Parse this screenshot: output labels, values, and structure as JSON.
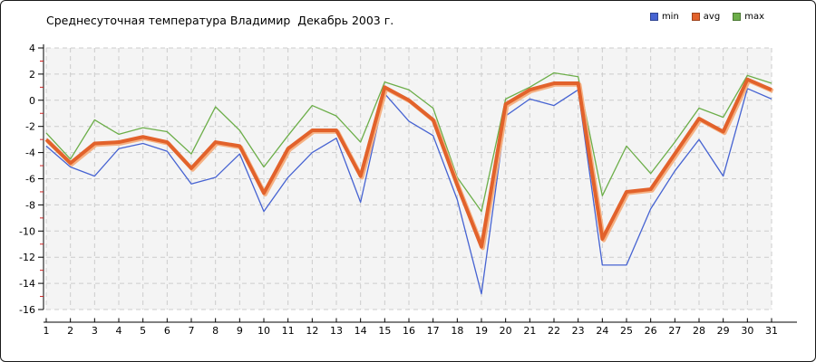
{
  "title": "Среднесуточная температура Владимир  Декабрь 2003 г.",
  "colors": {
    "plot_bg": "#f4f4f4",
    "grid": "#cccccc",
    "axis": "#000000",
    "minor_tick": "#cc2222",
    "frame_border": "#1a1a1a",
    "avg_halo": "#f5b183"
  },
  "chart_data": {
    "type": "line",
    "title": "Среднесуточная температура Владимир  Декабрь 2003 г.",
    "x": [
      1,
      2,
      3,
      4,
      5,
      6,
      7,
      8,
      9,
      10,
      11,
      12,
      13,
      14,
      15,
      16,
      17,
      18,
      19,
      20,
      21,
      22,
      23,
      24,
      25,
      26,
      27,
      28,
      29,
      30,
      31
    ],
    "series": [
      {
        "name": "min",
        "color": "#4663d2",
        "values": [
          -3.5,
          -5.1,
          -5.8,
          -3.7,
          -3.3,
          -3.9,
          -6.4,
          -5.9,
          -4.1,
          -8.5,
          -5.9,
          -4.0,
          -2.9,
          -7.8,
          0.5,
          -1.6,
          -2.7,
          -7.6,
          -14.8,
          -1.2,
          0.1,
          -0.4,
          0.8,
          -12.6,
          -12.6,
          -8.3,
          -5.4,
          -3.0,
          -5.8,
          0.9,
          0.1
        ]
      },
      {
        "name": "avg",
        "color": "#e2622b",
        "values": [
          -3.0,
          -4.8,
          -3.3,
          -3.2,
          -2.8,
          -3.2,
          -5.2,
          -3.2,
          -3.5,
          -7.1,
          -3.7,
          -2.3,
          -2.3,
          -5.8,
          1.0,
          0.0,
          -1.5,
          -6.5,
          -11.2,
          -0.3,
          0.8,
          1.3,
          1.3,
          -10.6,
          -7.0,
          -6.8,
          -4.1,
          -1.4,
          -2.4,
          1.6,
          0.8
        ]
      },
      {
        "name": "max",
        "color": "#6cae49",
        "values": [
          -2.5,
          -4.5,
          -1.5,
          -2.6,
          -2.1,
          -2.4,
          -4.1,
          -0.5,
          -2.3,
          -5.1,
          -2.7,
          -0.4,
          -1.2,
          -3.2,
          1.4,
          0.8,
          -0.6,
          -5.9,
          -8.5,
          0.1,
          1.0,
          2.1,
          1.8,
          -7.3,
          -3.5,
          -5.6,
          -3.2,
          -0.6,
          -1.3,
          1.9,
          1.3
        ]
      }
    ],
    "ylim": [
      -16,
      4
    ],
    "ytick_step": 2,
    "yminor_step": 1,
    "grid": "dashed",
    "legend_position": "top-right",
    "xlabel": "",
    "ylabel": ""
  }
}
